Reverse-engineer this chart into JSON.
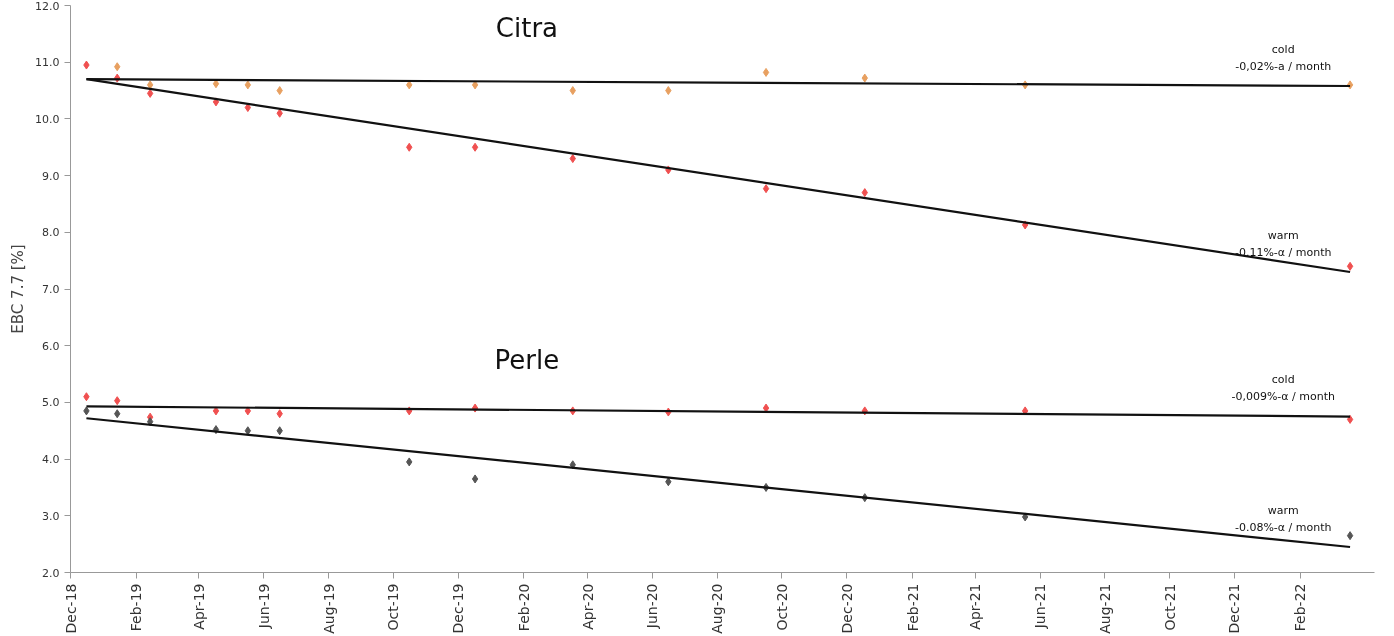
{
  "chart_data": {
    "type": "scatter",
    "ylabel": "EBC 7.7 [%]",
    "x": [
      "2018-12-16",
      "2019-01-14",
      "2019-02-14",
      "2019-04-17",
      "2019-05-17",
      "2019-06-16",
      "2019-10-16",
      "2019-12-17",
      "2020-03-18",
      "2020-06-16",
      "2020-09-16",
      "2020-12-18",
      "2021-05-18",
      "2022-03-20"
    ],
    "series": [
      {
        "color": "#e8a060",
        "values": [
          null,
          10.92,
          10.6,
          10.62,
          10.6,
          10.5,
          10.6,
          10.6,
          10.5,
          10.5,
          10.82,
          10.72,
          10.6,
          10.6
        ]
      },
      {
        "color": "#f05050",
        "values": [
          10.95,
          10.72,
          10.45,
          10.3,
          10.2,
          10.1,
          9.5,
          9.5,
          9.3,
          9.1,
          8.77,
          8.7,
          8.13,
          7.4
        ]
      },
      {
        "color": "#f05050",
        "values": [
          5.1,
          5.03,
          4.74,
          4.85,
          4.85,
          4.8,
          4.85,
          4.9,
          4.85,
          4.83,
          4.9,
          4.85,
          4.85,
          4.7
        ]
      },
      {
        "color": "#555555",
        "values": [
          4.85,
          4.8,
          4.66,
          4.52,
          4.5,
          4.5,
          3.95,
          3.65,
          3.9,
          3.6,
          3.5,
          3.32,
          2.98,
          2.65
        ]
      },
      {
        "type": "line",
        "marker": "none",
        "color": "#111111",
        "x": [
          "2018-12-16",
          "2022-03-20"
        ],
        "values": [
          10.7,
          10.58
        ]
      },
      {
        "type": "line",
        "marker": "none",
        "color": "#111111",
        "x": [
          "2018-12-16",
          "2022-03-20"
        ],
        "values": [
          10.7,
          7.3
        ]
      },
      {
        "type": "line",
        "marker": "none",
        "color": "#111111",
        "x": [
          "2018-12-16",
          "2022-03-20"
        ],
        "values": [
          4.93,
          4.75
        ]
      },
      {
        "type": "line",
        "marker": "none",
        "color": "#111111",
        "x": [
          "2018-12-16",
          "2022-03-20"
        ],
        "values": [
          4.72,
          2.45
        ]
      }
    ],
    "marker": "diamond",
    "grid": false,
    "xlim": [
      "2018-12-01",
      "2022-04-12"
    ],
    "xticks": [
      {
        "value": "2018-12-01",
        "label": "Dec-18"
      },
      {
        "value": "2019-02-01",
        "label": "Feb-19"
      },
      {
        "value": "2019-04-01",
        "label": "Apr-19"
      },
      {
        "value": "2019-06-01",
        "label": "Jun-19"
      },
      {
        "value": "2019-08-01",
        "label": "Aug-19"
      },
      {
        "value": "2019-10-01",
        "label": "Oct-19"
      },
      {
        "value": "2019-12-01",
        "label": "Dec-19"
      },
      {
        "value": "2020-02-01",
        "label": "Feb-20"
      },
      {
        "value": "2020-04-01",
        "label": "Apr-20"
      },
      {
        "value": "2020-06-01",
        "label": "Jun-20"
      },
      {
        "value": "2020-08-01",
        "label": "Aug-20"
      },
      {
        "value": "2020-10-01",
        "label": "Oct-20"
      },
      {
        "value": "2020-12-01",
        "label": "Dec-20"
      },
      {
        "value": "2021-02-01",
        "label": "Feb-21"
      },
      {
        "value": "2021-04-01",
        "label": "Apr-21"
      },
      {
        "value": "2021-06-01",
        "label": "Jun-21"
      },
      {
        "value": "2021-08-01",
        "label": "Aug-21"
      },
      {
        "value": "2021-10-01",
        "label": "Oct-21"
      },
      {
        "value": "2021-12-01",
        "label": "Dec-21"
      },
      {
        "value": "2022-02-01",
        "label": "Feb-22"
      }
    ],
    "ylim": [
      2,
      12
    ],
    "yticks": [
      {
        "value": 2,
        "label": "2.0"
      },
      {
        "value": 3,
        "label": "3.0"
      },
      {
        "value": 4,
        "label": "4.0"
      },
      {
        "value": 5,
        "label": "5.0"
      },
      {
        "value": 6,
        "label": "6.0"
      },
      {
        "value": 7,
        "label": "7.0"
      },
      {
        "value": 8,
        "label": "8.0"
      },
      {
        "value": 9,
        "label": "9.0"
      },
      {
        "value": 10,
        "label": "10.0"
      },
      {
        "value": 11,
        "label": "11.0"
      },
      {
        "value": 12,
        "label": "12.0"
      }
    ],
    "annotations": [
      "Citra",
      "Perle",
      "cold",
      "-0,02%-a / month",
      "warm",
      "-0.11%-α / month",
      "cold",
      "-0,009%-α / month",
      "warm",
      "-0.08%-α / month"
    ]
  }
}
